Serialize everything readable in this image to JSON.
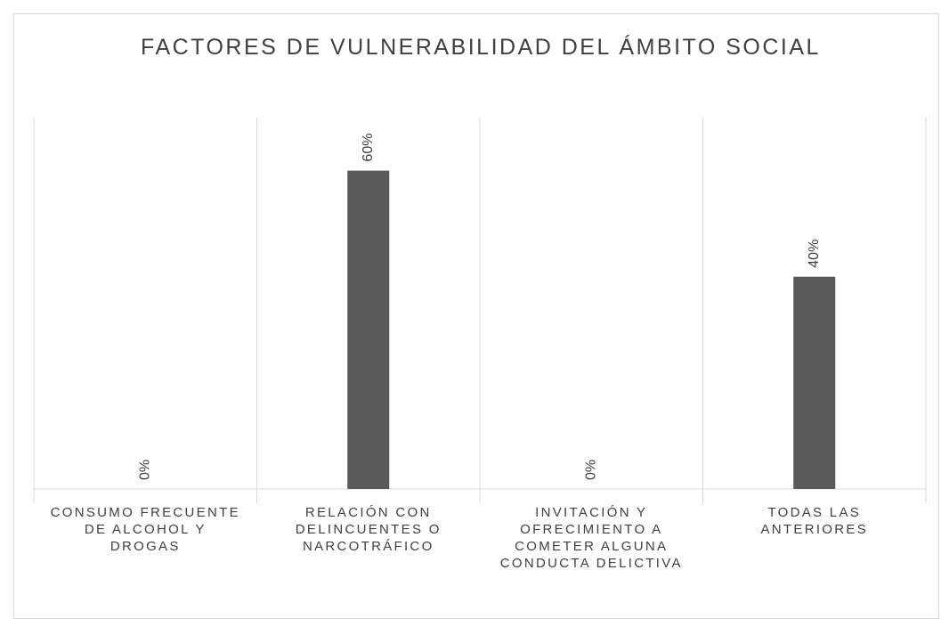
{
  "chart_data": {
    "type": "bar",
    "title": "FACTORES DE VULNERABILIDAD DEL ÁMBITO SOCIAL",
    "categories": [
      "CONSUMO FRECUENTE DE ALCOHOL Y DROGAS",
      "RELACIÓN CON DELINCUENTES O NARCOTRÁFICO",
      "INVITACIÓN Y OFRECIMIENTO A COMETER ALGUNA CONDUCTA DELICTIVA",
      "TODAS LAS ANTERIORES"
    ],
    "values": [
      0,
      60,
      0,
      40
    ],
    "value_labels": [
      "0%",
      "60%",
      "0%",
      "40%"
    ],
    "color": "#595959",
    "ylim": [
      0,
      70
    ]
  }
}
